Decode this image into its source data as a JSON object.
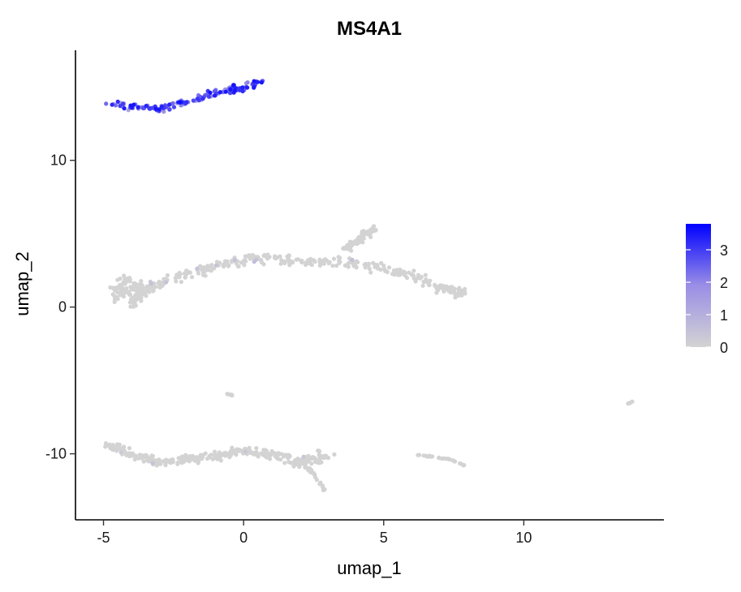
{
  "chart_data": {
    "type": "scatter",
    "title": "MS4A1",
    "xlabel": "umap_1",
    "ylabel": "umap_2",
    "xlim": [
      -6,
      15
    ],
    "ylim": [
      -14.5,
      17.5
    ],
    "x_ticks": [
      -5,
      0,
      5,
      10
    ],
    "y_ticks": [
      -10,
      0,
      10
    ],
    "grid": false,
    "legend": {
      "position": "right",
      "type": "colorbar",
      "ticks": [
        0,
        1,
        2,
        3
      ],
      "min": 0,
      "max": 3.8,
      "low_color": "#d3d3d3",
      "high_color": "#0000ff"
    },
    "clusters": [
      {
        "description": "expressing cluster",
        "x_range": [
          -4.8,
          0.6
        ],
        "y_range": [
          13.2,
          15.3
        ],
        "expression_range": [
          1.2,
          3.8
        ]
      },
      {
        "description": "middle arm",
        "x_range": [
          -4.7,
          8.0
        ],
        "y_range": [
          0.0,
          4.5
        ],
        "expression_range": [
          0,
          0.4
        ]
      },
      {
        "description": "upper branch",
        "x_range": [
          3.5,
          4.8
        ],
        "y_range": [
          3.8,
          5.6
        ],
        "expression_range": [
          0,
          0
        ]
      },
      {
        "description": "lower band",
        "x_range": [
          -5.0,
          3.2
        ],
        "y_range": [
          -12.8,
          -9.0
        ],
        "expression_range": [
          0,
          0.3
        ]
      },
      {
        "description": "right lower strand",
        "x_range": [
          6.2,
          7.9
        ],
        "y_range": [
          -10.8,
          -10.1
        ],
        "expression_range": [
          0,
          0
        ]
      },
      {
        "description": "small cluster",
        "x_range": [
          -0.6,
          -0.4
        ],
        "y_range": [
          -6.1,
          -5.8
        ],
        "expression_range": [
          0,
          0
        ]
      },
      {
        "description": "isolated points",
        "x_range": [
          13.7,
          13.9
        ],
        "y_range": [
          -6.7,
          -6.4
        ],
        "expression_range": [
          0,
          0
        ]
      }
    ]
  }
}
